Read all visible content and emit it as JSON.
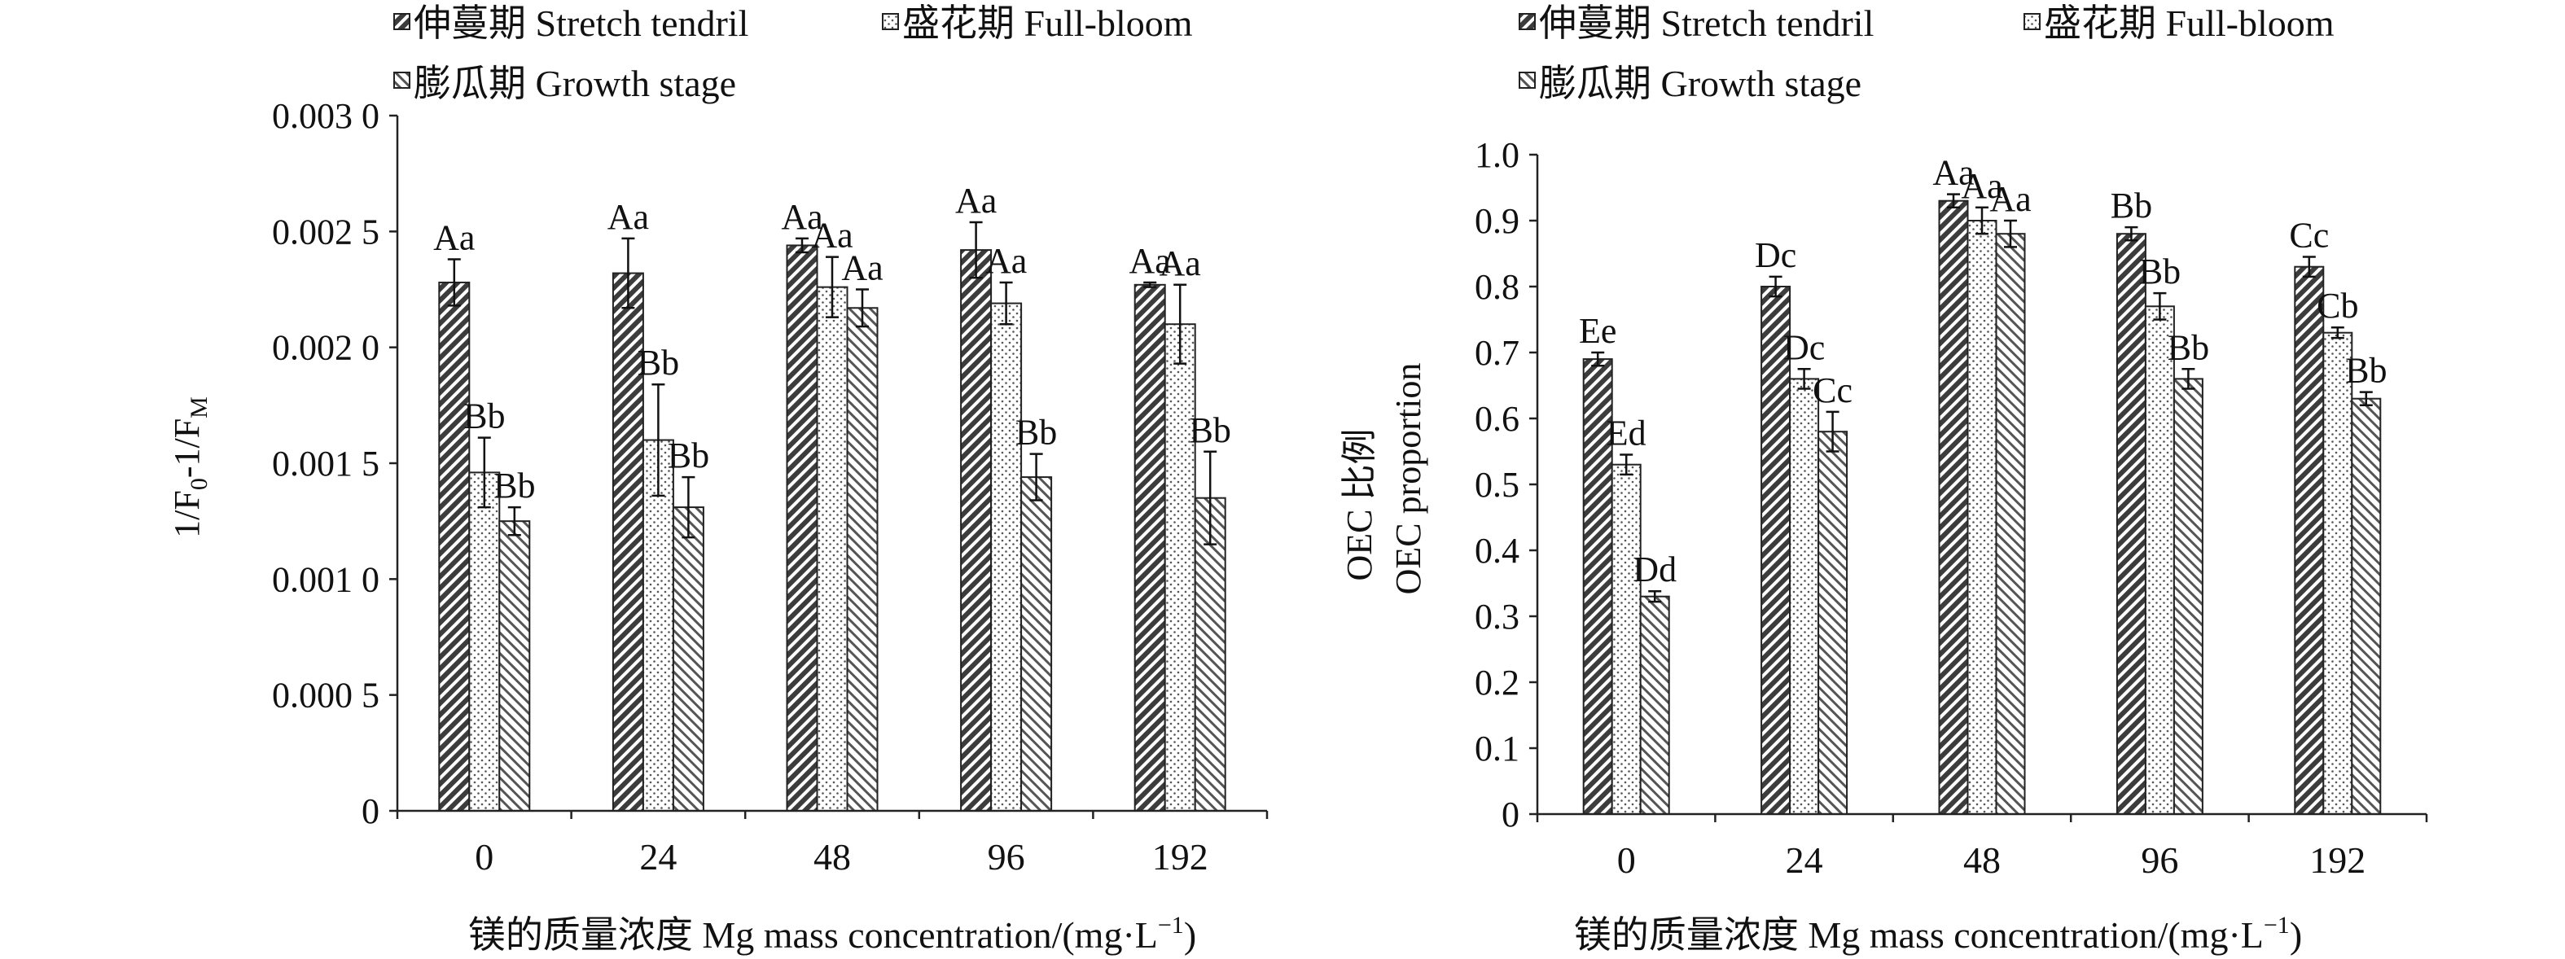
{
  "colors": {
    "axis": "#222222",
    "series_fill": [
      "#4a4a4a",
      "#ffffff",
      "#8a8a8a"
    ],
    "series_pattern": [
      "dense-diagonal",
      "dots",
      "light-diagonal"
    ]
  },
  "chart_data": [
    {
      "type": "bar",
      "title": "",
      "ylabel": "1/F0-1/FM",
      "ylabel_parts": {
        "a": "1/F",
        "b": "0",
        "c": "-1/F",
        "d": "M"
      },
      "xlabel": "镁的质量浓度 Mg mass concentration/(mg·L",
      "xlabel_sup": "−1",
      "xlabel_end": ")",
      "categories": [
        "0",
        "24",
        "48",
        "96",
        "192"
      ],
      "ylim": [
        0,
        0.003
      ],
      "yticks": [
        0,
        0.0005,
        0.001,
        0.0015,
        0.002,
        0.0025,
        0.003
      ],
      "ytick_labels": [
        "0",
        "0.000 5",
        "0.001 0",
        "0.001 5",
        "0.002 0",
        "0.002 5",
        "0.003 0"
      ],
      "legend": [
        "伸蔓期 Stretch tendril",
        "盛花期 Full-bloom",
        "膨瓜期 Growth stage"
      ],
      "legend_placement": "top",
      "series": [
        {
          "name": "伸蔓期 Stretch tendril",
          "values": [
            0.00228,
            0.00232,
            0.00244,
            0.00242,
            0.00227
          ],
          "errors": [
            0.0001,
            0.00015,
            3e-05,
            0.00012,
            1e-05
          ],
          "labels": [
            "Aa",
            "Aa",
            "Aa",
            "Aa",
            "Aa"
          ]
        },
        {
          "name": "盛花期 Full-bloom",
          "values": [
            0.00146,
            0.0016,
            0.00226,
            0.00219,
            0.0021
          ],
          "errors": [
            0.00015,
            0.00024,
            0.00013,
            9e-05,
            0.00017
          ],
          "labels": [
            "Bb",
            "Bb",
            "Aa",
            "Aa",
            "Aa"
          ]
        },
        {
          "name": "膨瓜期 Growth stage",
          "values": [
            0.00125,
            0.00131,
            0.00217,
            0.00144,
            0.00135
          ],
          "errors": [
            6e-05,
            0.00013,
            8e-05,
            0.0001,
            0.0002
          ],
          "labels": [
            "Bb",
            "Bb",
            "Aa",
            "Bb",
            "Bb"
          ]
        }
      ]
    },
    {
      "type": "bar",
      "title": "",
      "ylabel": "OEC 比例 OEC proportion",
      "ylabel_line1": "OEC 比例",
      "ylabel_line2": "OEC proportion",
      "xlabel": "镁的质量浓度 Mg mass concentration/(mg·L",
      "xlabel_sup": "−1",
      "xlabel_end": ")",
      "categories": [
        "0",
        "24",
        "48",
        "96",
        "192"
      ],
      "ylim": [
        0,
        1.0
      ],
      "yticks": [
        0,
        0.1,
        0.2,
        0.3,
        0.4,
        0.5,
        0.6,
        0.7,
        0.8,
        0.9,
        1.0
      ],
      "ytick_labels": [
        "0",
        "0.1",
        "0.2",
        "0.3",
        "0.4",
        "0.5",
        "0.6",
        "0.7",
        "0.8",
        "0.9",
        "1.0"
      ],
      "legend": [
        "伸蔓期 Stretch tendril",
        "盛花期 Full-bloom",
        "膨瓜期 Growth stage"
      ],
      "legend_placement": "top",
      "series": [
        {
          "name": "伸蔓期 Stretch tendril",
          "values": [
            0.69,
            0.8,
            0.93,
            0.88,
            0.83
          ],
          "errors": [
            0.01,
            0.015,
            0.01,
            0.01,
            0.015
          ],
          "labels": [
            "Ee",
            "Dc",
            "Aa",
            "Bb",
            "Cc"
          ]
        },
        {
          "name": "盛花期 Full-bloom",
          "values": [
            0.53,
            0.66,
            0.9,
            0.77,
            0.73
          ],
          "errors": [
            0.015,
            0.015,
            0.02,
            0.02,
            0.008
          ],
          "labels": [
            "Ed",
            "Dc",
            "Aa",
            "Bb",
            "Cb"
          ]
        },
        {
          "name": "膨瓜期 Growth stage",
          "values": [
            0.33,
            0.58,
            0.88,
            0.66,
            0.63
          ],
          "errors": [
            0.008,
            0.03,
            0.02,
            0.015,
            0.01
          ],
          "labels": [
            "Dd",
            "Cc",
            "Aa",
            "Bb",
            "Bb"
          ]
        }
      ]
    }
  ]
}
